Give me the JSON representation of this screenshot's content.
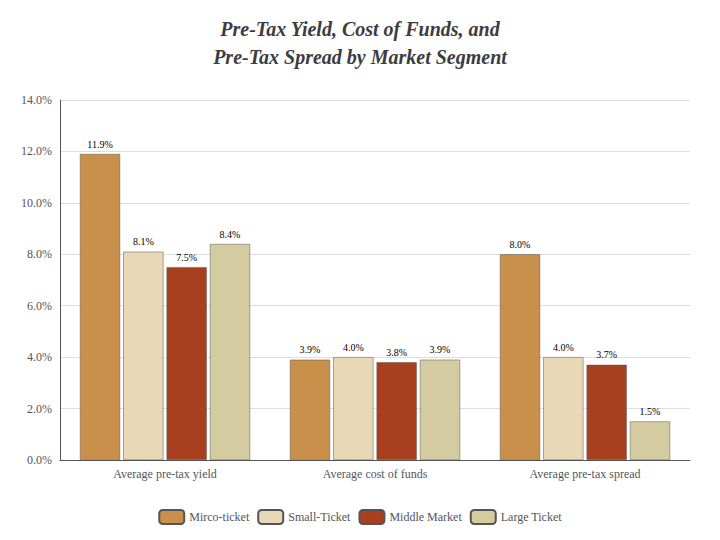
{
  "chart_data": {
    "type": "bar",
    "title": "Pre-Tax Yield, Cost of Funds, and\nPre-Tax Spread by Market Segment",
    "categories": [
      "Average pre-tax yield",
      "Average cost of funds",
      "Average pre-tax spread"
    ],
    "series": [
      {
        "name": "Mirco-ticket",
        "color": "#C8904A",
        "values": [
          11.9,
          3.9,
          8.0
        ],
        "value_labels": [
          "11.9%",
          "3.9%",
          "8.0%"
        ]
      },
      {
        "name": "Small-Ticket",
        "color": "#E8D8B8",
        "values": [
          8.1,
          4.0,
          4.0
        ],
        "value_labels": [
          "8.1%",
          "4.0%",
          "4.0%"
        ]
      },
      {
        "name": "Middle Market",
        "color": "#A84020",
        "values": [
          7.5,
          3.8,
          3.7
        ],
        "value_labels": [
          "7.5%",
          "3.8%",
          "3.7%"
        ]
      },
      {
        "name": "Large Ticket",
        "color": "#D4CCA0",
        "values": [
          8.4,
          3.9,
          1.5
        ],
        "value_labels": [
          "8.4%",
          "3.9%",
          "1.5%"
        ]
      }
    ],
    "ylim": [
      0,
      14
    ],
    "yticks": [
      {
        "value": 0,
        "label": "0.0%"
      },
      {
        "value": 2,
        "label": "2.0%"
      },
      {
        "value": 4,
        "label": "4.0%"
      },
      {
        "value": 6,
        "label": "6.0%"
      },
      {
        "value": 8,
        "label": "8.0%"
      },
      {
        "value": 10,
        "label": "10.0%"
      },
      {
        "value": 12,
        "label": "12.0%"
      },
      {
        "value": 14,
        "label": "14.0%"
      }
    ],
    "grid": true,
    "legend": "bottom",
    "data_labels": true
  }
}
